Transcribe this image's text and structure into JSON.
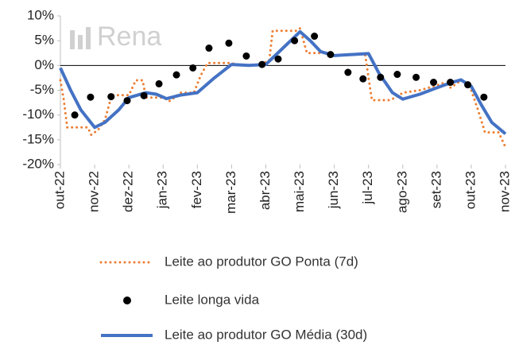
{
  "chart_data": {
    "type": "line",
    "watermark": "Rena",
    "xlim": [
      0,
      13
    ],
    "xticks": [
      {
        "value": 0,
        "label": "out-22"
      },
      {
        "value": 1,
        "label": "nov-22"
      },
      {
        "value": 2,
        "label": "dez-22"
      },
      {
        "value": 3,
        "label": "jan-23"
      },
      {
        "value": 4,
        "label": "fev-23"
      },
      {
        "value": 5,
        "label": "mar-23"
      },
      {
        "value": 6,
        "label": "abr-23"
      },
      {
        "value": 7,
        "label": "mai-23"
      },
      {
        "value": 8,
        "label": "jun-23"
      },
      {
        "value": 9,
        "label": "jul-23"
      },
      {
        "value": 10,
        "label": "ago-23"
      },
      {
        "value": 11,
        "label": "set-23"
      },
      {
        "value": 12,
        "label": "out-23"
      },
      {
        "value": 13,
        "label": "nov-23"
      }
    ],
    "ylim": [
      -20,
      10
    ],
    "yticks": [
      {
        "value": -20,
        "label": "-20%"
      },
      {
        "value": -15,
        "label": "-15%"
      },
      {
        "value": -10,
        "label": "-10%"
      },
      {
        "value": -5,
        "label": "-5%"
      },
      {
        "value": 0,
        "label": "0%"
      },
      {
        "value": 5,
        "label": "5%"
      },
      {
        "value": 10,
        "label": "10%"
      }
    ],
    "series": [
      {
        "name": "Leite ao produtor GO Ponta (7d)",
        "color": "#ed7d31",
        "style": "dotted",
        "x": [
          0,
          0.1,
          0.2,
          0.8,
          0.9,
          1.1,
          1.3,
          1.5,
          2.0,
          2.2,
          2.4,
          2.5,
          3.0,
          3.2,
          3.5,
          3.9,
          4.1,
          4.3,
          5.0,
          5.2,
          5.8,
          6.1,
          6.2,
          6.9,
          7.0,
          7.2,
          7.8,
          8.0,
          8.9,
          9.0,
          9.1,
          9.6,
          9.8,
          10.0,
          10.5,
          11.0,
          11.2,
          11.4,
          11.6,
          11.8,
          12.0,
          12.2,
          12.4,
          12.8,
          13.0
        ],
        "values": [
          -3,
          -7,
          -12.5,
          -12.5,
          -14,
          -13,
          -11,
          -6,
          -6,
          -3,
          -3,
          -6.5,
          -6.5,
          -7.2,
          -5.5,
          -5.5,
          -2,
          0.5,
          0.5,
          0,
          0,
          1,
          7,
          7,
          7.5,
          2.5,
          2.5,
          2,
          2.3,
          -2.5,
          -7,
          -7,
          -6.5,
          -5.5,
          -5,
          -4,
          -3.5,
          -4.5,
          -3.5,
          -3,
          -5,
          -9,
          -13.5,
          -13.5,
          -16.5
        ]
      },
      {
        "name": "Leite longa vida",
        "color": "#000000",
        "style": "markers",
        "x": [
          0.42,
          0.88,
          1.48,
          1.95,
          2.44,
          2.88,
          3.39,
          3.87,
          4.34,
          4.92,
          5.43,
          5.89,
          6.36,
          6.84,
          7.42,
          7.89,
          8.4,
          8.84,
          9.35,
          9.84,
          10.39,
          10.9,
          11.39,
          11.9,
          12.37
        ],
        "values": [
          -10,
          -6.4,
          -6.3,
          -7.1,
          -6.1,
          -3.7,
          -1.9,
          -0.5,
          3.5,
          4.5,
          1.9,
          0.2,
          1.3,
          5,
          5.9,
          2.2,
          -1.4,
          -2.7,
          -2.4,
          -1.8,
          -2.4,
          -3.4,
          -3.4,
          -3.9,
          -6.4
        ]
      },
      {
        "name": "Leite ao produtor GO Média (30d)",
        "color": "#4472c4",
        "style": "solid",
        "x": [
          0,
          0.3,
          0.6,
          1.0,
          1.3,
          1.7,
          2.0,
          2.5,
          2.8,
          3.1,
          3.5,
          4.0,
          4.5,
          5.0,
          5.5,
          6.0,
          6.5,
          7.0,
          7.3,
          7.6,
          8.0,
          8.5,
          9.0,
          9.3,
          9.7,
          10.0,
          10.5,
          11.0,
          11.4,
          11.7,
          12.0,
          12.3,
          12.6,
          13.0
        ],
        "values": [
          -0.5,
          -5,
          -9,
          -12.5,
          -11.5,
          -9,
          -6.5,
          -5.5,
          -5.8,
          -6.7,
          -6,
          -5.5,
          -2.5,
          0.2,
          0,
          0.2,
          3.5,
          6.8,
          5,
          2.8,
          2,
          2.2,
          2.4,
          -1.5,
          -5.5,
          -6.8,
          -5.8,
          -4.5,
          -3.5,
          -2.9,
          -4.2,
          -8,
          -11.5,
          -13.8
        ]
      }
    ]
  }
}
